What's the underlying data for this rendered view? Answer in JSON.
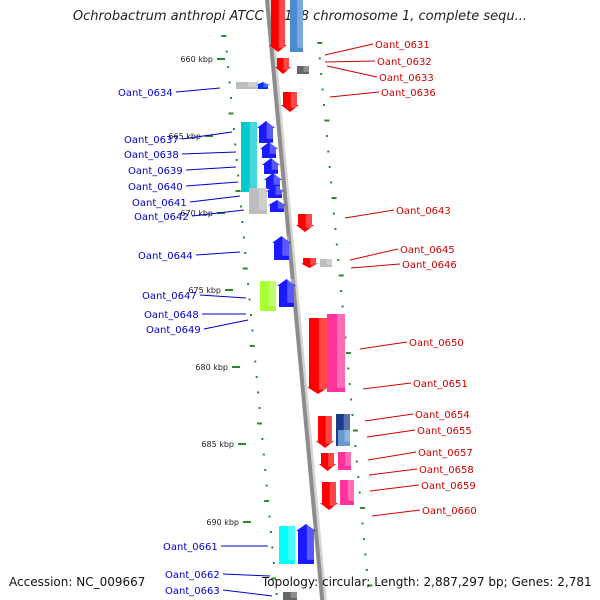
{
  "title": "Ochrobactrum anthropi ATCC 49188 chromosome 1, complete sequ...",
  "accession": "Accession: NC_009667",
  "topology": "Topology: circular; Length: 2,887,297 bp; Genes: 2,781",
  "scale_labels": [
    "660 kbp",
    "665 kbp",
    "670 kbp",
    "675 kbp",
    "680 kbp",
    "685 kbp",
    "690 kbp"
  ],
  "colors": {
    "backbone": "#8c8c8c",
    "reverse_label": "#0000cc",
    "forward_label": "#cc0000",
    "tick": "#2b8a2b"
  },
  "reverse_genes": [
    {
      "label": "Oant_0634"
    },
    {
      "label": "Oant_0637"
    },
    {
      "label": "Oant_0638"
    },
    {
      "label": "Oant_0639"
    },
    {
      "label": "Oant_0640"
    },
    {
      "label": "Oant_0641"
    },
    {
      "label": "Oant_0642"
    },
    {
      "label": "Oant_0644"
    },
    {
      "label": "Oant_0647"
    },
    {
      "label": "Oant_0648"
    },
    {
      "label": "Oant_0649"
    },
    {
      "label": "Oant_0661"
    },
    {
      "label": "Oant_0662"
    },
    {
      "label": "Oant_0663"
    }
  ],
  "forward_genes": [
    {
      "label": "Oant_0631"
    },
    {
      "label": "Oant_0632"
    },
    {
      "label": "Oant_0633"
    },
    {
      "label": "Oant_0636"
    },
    {
      "label": "Oant_0643"
    },
    {
      "label": "Oant_0645"
    },
    {
      "label": "Oant_0646"
    },
    {
      "label": "Oant_0650"
    },
    {
      "label": "Oant_0651"
    },
    {
      "label": "Oant_0654"
    },
    {
      "label": "Oant_0655"
    },
    {
      "label": "Oant_0657"
    },
    {
      "label": "Oant_0658"
    },
    {
      "label": "Oant_0659"
    },
    {
      "label": "Oant_0660"
    }
  ]
}
